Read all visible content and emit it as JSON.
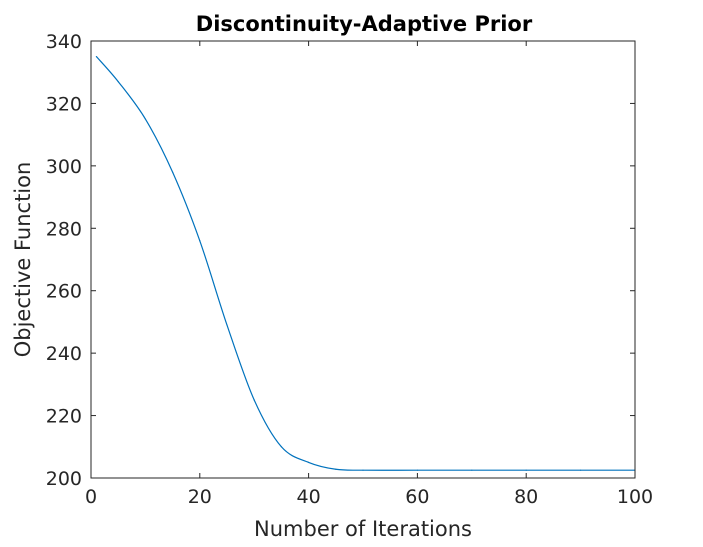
{
  "chart_data": {
    "type": "line",
    "title": "Discontinuity-Adaptive Prior",
    "xlabel": "Number of Iterations",
    "ylabel": "Objective Function",
    "xlim": [
      0,
      100
    ],
    "ylim": [
      200,
      340
    ],
    "xticks": [
      "0",
      "20",
      "40",
      "60",
      "80",
      "100"
    ],
    "yticks": [
      "200",
      "220",
      "240",
      "260",
      "280",
      "300",
      "320",
      "340"
    ],
    "grid": false,
    "series": [
      {
        "color": "#0072BD",
        "x": [
          1,
          5,
          10,
          15,
          20,
          25,
          30,
          35,
          40,
          45,
          50,
          60,
          70,
          80,
          90,
          100
        ],
        "y": [
          335,
          327,
          315,
          298,
          276,
          249,
          225,
          210,
          205,
          202.8,
          202.5,
          202.5,
          202.5,
          202.5,
          202.5,
          202.5
        ]
      }
    ]
  }
}
